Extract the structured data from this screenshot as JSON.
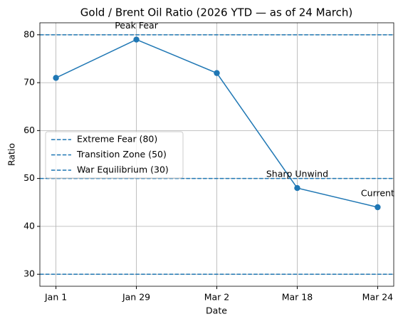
{
  "chart_data": {
    "type": "line",
    "title": "Gold / Brent Oil Ratio (2026 YTD — as of 24 March)",
    "x_label": "Date",
    "y_label": "Ratio",
    "categories": [
      "Jan 1",
      "Jan 29",
      "Mar 2",
      "Mar 18",
      "Mar 24"
    ],
    "series": [
      {
        "name": "Gold / Brent Oil Ratio",
        "color": "#1f77b4",
        "values": [
          71,
          79,
          72,
          48,
          44
        ]
      }
    ],
    "hlines": [
      {
        "name": "Extreme Fear (80)",
        "value": 80,
        "color": "#1f77b4"
      },
      {
        "name": "Transition Zone (50)",
        "value": 50,
        "color": "#1f77b4"
      },
      {
        "name": "War Equilibrium (30)",
        "value": 30,
        "color": "#1f77b4"
      }
    ],
    "annotations": [
      {
        "text": "Peak Fear",
        "x": "Jan 29"
      },
      {
        "text": "Sharp Unwind",
        "x": "Mar 18"
      },
      {
        "text": "Current",
        "x": "Mar 24"
      }
    ],
    "ylim": [
      27.5,
      82.5
    ],
    "yticks": [
      30,
      40,
      50,
      60,
      70,
      80
    ],
    "grid": true,
    "legend": "center left"
  }
}
